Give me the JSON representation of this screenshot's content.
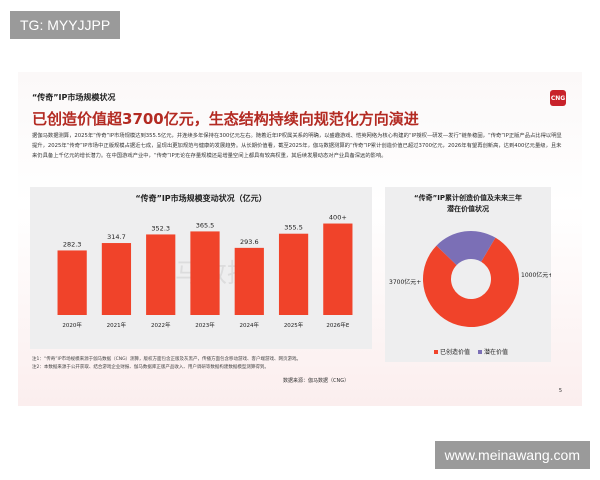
{
  "watermark_top": "TG: MYYJJPP",
  "watermark_bottom": "www.meinawang.com",
  "slide": {
    "subtitle": "“传奇”IP市场规模状况",
    "logo": "CNG",
    "title": "已创造价值超3700亿元，生态结构持续向规范化方向演进",
    "paragraph": "据伽马数据测算，2025年“传奇”IP市场规模达到355.5亿元，并连续多年保持在300亿元左右。随着近年IP权属关系的明确，以盛趣游戏、恺英网络为核心构建的“IP授权—研发—发行”链条稳固，“传奇”IP正版产品占比得以明显提升，2025年“传奇”IP市场中正版规模占据近七成，呈现出更加规范与健康的发展趋势。从长期价值看，截至2025年，伽马数据测算的“传奇”IP累计创造价值已超过3700亿元，2026年有望再创新高，达到400亿元量级，且未来仍具备上千亿元的增长潜力。在中国游戏产业中，“传奇”IP无论在存量规模还是增量空间上都具有较高权重，其后续发展动态对产业具备深远的影响。",
    "note1": "注1：“传奇”IP市场规模来源于伽马数据（CNG）测算，版权方面包含正版及灰黑产，传播方面包含移动游戏、客户端游戏、网页游戏。",
    "note2": "注2：本数据来源于公开获取、结合游戏企业财报、伽马数据库正版产品收入、用户调研等数据构建数据模型测算得到。",
    "source": "数据来源：伽马数据（CNG）",
    "page": "5",
    "chart_watermark": "伽马数据"
  },
  "chart_data": [
    {
      "type": "bar",
      "title": "“传奇”IP市场规模变动状况（亿元）",
      "categories": [
        "2020年",
        "2021年",
        "2022年",
        "2023年",
        "2024年",
        "2025年",
        "2026年E"
      ],
      "values": [
        282.3,
        314.7,
        352.3,
        365.5,
        293.6,
        355.5,
        400
      ],
      "labels": [
        "282.3",
        "314.7",
        "352.3",
        "365.5",
        "293.6",
        "355.5",
        "400+"
      ],
      "color": "#f0432a",
      "ylim": [
        0,
        450
      ]
    },
    {
      "type": "pie",
      "title": "“传奇”IP累计创造价值及未来三年潜在价值状况",
      "title_lines": [
        "“传奇”IP累计创造价值及未来三年",
        "潜在价值状况"
      ],
      "slices": [
        {
          "name": "已创造价值",
          "value": 3700,
          "label": "3700亿元+",
          "color": "#f0432a"
        },
        {
          "name": "潜在价值",
          "value": 1000,
          "label": "1000亿元+",
          "color": "#7b6fb6"
        }
      ]
    }
  ]
}
